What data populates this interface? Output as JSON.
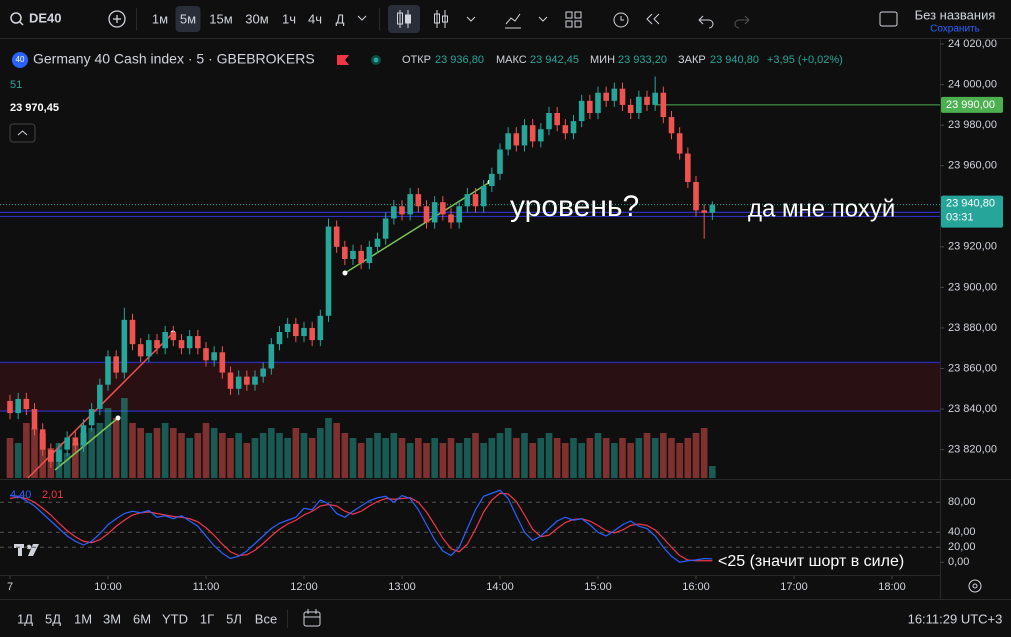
{
  "ui": {
    "symbol": "DE40",
    "timeframes": [
      "1м",
      "5м",
      "15м",
      "30м",
      "1ч",
      "4ч",
      "Д"
    ],
    "active_timeframe": 1,
    "layout_name": "Без названия",
    "save": "Сохранить",
    "badge": "40",
    "counter": "51",
    "crosshair_price": "23 970,45",
    "ranges": [
      "1Д",
      "5Д",
      "1М",
      "3М",
      "6М",
      "YTD",
      "1Г",
      "5Л",
      "Все"
    ],
    "clock": "16:11:29 UTC+3"
  },
  "chart_data": {
    "type": "candlestick",
    "title": "Germany 40 Cash index · 5 · GBEBROKERS",
    "legend": [
      {
        "key": "ОТКР",
        "value": "23 936,80"
      },
      {
        "key": "МАКС",
        "value": "23 942,45"
      },
      {
        "key": "МИН",
        "value": "23 933,20"
      },
      {
        "key": "ЗАКР",
        "value": "23 940,80"
      }
    ],
    "change": "+3,95 (+0,02%)",
    "colors": {
      "up": "#26a69a",
      "down": "#ef5350"
    },
    "x": [
      "09:00",
      "09:05",
      "09:10",
      "09:15",
      "09:20",
      "09:25",
      "09:30",
      "09:35",
      "09:40",
      "09:45",
      "09:50",
      "09:55",
      "10:00",
      "10:05",
      "10:10",
      "10:15",
      "10:20",
      "10:25",
      "10:30",
      "10:35",
      "10:40",
      "10:45",
      "10:50",
      "10:55",
      "11:00",
      "11:05",
      "11:10",
      "11:15",
      "11:20",
      "11:25",
      "11:30",
      "11:35",
      "11:40",
      "11:45",
      "11:50",
      "11:55",
      "12:00",
      "12:05",
      "12:10",
      "12:15",
      "12:20",
      "12:25",
      "12:30",
      "12:35",
      "12:40",
      "12:45",
      "12:50",
      "12:55",
      "13:00",
      "13:05",
      "13:10",
      "13:15",
      "13:20",
      "13:25",
      "13:30",
      "13:35",
      "13:40",
      "13:45",
      "13:50",
      "13:55",
      "14:00",
      "14:05",
      "14:10",
      "14:15",
      "14:20",
      "14:25",
      "14:30",
      "14:35",
      "14:40",
      "14:45",
      "14:50",
      "14:55",
      "15:00",
      "15:05",
      "15:10",
      "15:15",
      "15:20",
      "15:25",
      "15:30",
      "15:35",
      "15:40",
      "15:45",
      "15:50",
      "15:55",
      "16:00",
      "16:05",
      "16:10"
    ],
    "open": [
      23844,
      23838,
      23845,
      23840,
      23830,
      23820,
      23814,
      23820,
      23826,
      23822,
      23832,
      23840,
      23852,
      23866,
      23858,
      23884,
      23872,
      23866,
      23874,
      23870,
      23878,
      23874,
      23870,
      23876,
      23870,
      23864,
      23868,
      23858,
      23850,
      23856,
      23852,
      23856,
      23860,
      23872,
      23878,
      23882,
      23876,
      23880,
      23874,
      23886,
      23930,
      23920,
      23914,
      23918,
      23912,
      23920,
      23924,
      23934,
      23940,
      23936,
      23946,
      23940,
      23932,
      23942,
      23936,
      23932,
      23940,
      23946,
      23940,
      23950,
      23956,
      23968,
      23976,
      23970,
      23980,
      23972,
      23978,
      23986,
      23980,
      23976,
      23982,
      23992,
      23986,
      23996,
      23992,
      23998,
      23990,
      23986,
      23994,
      23990,
      23996,
      23984,
      23976,
      23966,
      23952,
      23938,
      23936.8
    ],
    "high": [
      23847,
      23848,
      23848,
      23843,
      23833,
      23823,
      23823,
      23829,
      23829,
      23835,
      23843,
      23855,
      23869,
      23869,
      23890,
      23887,
      23875,
      23877,
      23877,
      23881,
      23881,
      23877,
      23879,
      23879,
      23873,
      23871,
      23871,
      23861,
      23859,
      23859,
      23859,
      23863,
      23875,
      23881,
      23885,
      23885,
      23883,
      23883,
      23889,
      23934,
      23933,
      23923,
      23921,
      23921,
      23923,
      23927,
      23937,
      23943,
      23943,
      23949,
      23949,
      23943,
      23945,
      23945,
      23939,
      23943,
      23949,
      23949,
      23953,
      23959,
      23971,
      23979,
      23979,
      23983,
      23983,
      23981,
      23989,
      23989,
      23983,
      23985,
      23995,
      23995,
      23999,
      23999,
      24001,
      24001,
      23993,
      23997,
      23997,
      24004,
      23999,
      23987,
      23979,
      23969,
      23955,
      23941,
      23942.45
    ],
    "low": [
      23835,
      23835,
      23837,
      23827,
      23817,
      23811,
      23811,
      23817,
      23819,
      23819,
      23829,
      23837,
      23849,
      23855,
      23855,
      23869,
      23863,
      23863,
      23867,
      23867,
      23871,
      23867,
      23867,
      23867,
      23861,
      23861,
      23855,
      23847,
      23847,
      23849,
      23849,
      23853,
      23857,
      23869,
      23875,
      23873,
      23873,
      23871,
      23871,
      23883,
      23917,
      23911,
      23911,
      23909,
      23909,
      23917,
      23921,
      23931,
      23933,
      23933,
      23937,
      23929,
      23929,
      23933,
      23929,
      23929,
      23937,
      23937,
      23937,
      23947,
      23953,
      23965,
      23967,
      23967,
      23969,
      23969,
      23975,
      23977,
      23973,
      23973,
      23979,
      23983,
      23983,
      23989,
      23989,
      23987,
      23983,
      23983,
      23987,
      23987,
      23981,
      23973,
      23963,
      23949,
      23935,
      23924,
      23933.2
    ],
    "close": [
      23838,
      23845,
      23840,
      23830,
      23820,
      23814,
      23820,
      23826,
      23822,
      23832,
      23840,
      23852,
      23866,
      23858,
      23884,
      23872,
      23866,
      23874,
      23870,
      23878,
      23874,
      23870,
      23876,
      23870,
      23864,
      23868,
      23858,
      23850,
      23856,
      23852,
      23856,
      23860,
      23872,
      23878,
      23882,
      23876,
      23880,
      23874,
      23886,
      23930,
      23920,
      23914,
      23918,
      23912,
      23920,
      23924,
      23934,
      23940,
      23936,
      23946,
      23940,
      23932,
      23942,
      23936,
      23932,
      23940,
      23946,
      23940,
      23950,
      23956,
      23968,
      23976,
      23970,
      23980,
      23972,
      23978,
      23986,
      23980,
      23976,
      23982,
      23992,
      23986,
      23996,
      23992,
      23998,
      23990,
      23986,
      23994,
      23990,
      23996,
      23984,
      23976,
      23966,
      23952,
      23938,
      23936.8,
      23940.8
    ],
    "volume": [
      40,
      35,
      55,
      50,
      45,
      30,
      35,
      25,
      35,
      45,
      50,
      55,
      70,
      60,
      80,
      55,
      50,
      45,
      50,
      55,
      50,
      45,
      40,
      45,
      55,
      50,
      45,
      40,
      45,
      35,
      40,
      45,
      50,
      45,
      40,
      50,
      45,
      40,
      50,
      60,
      55,
      45,
      40,
      35,
      40,
      45,
      40,
      45,
      40,
      35,
      40,
      35,
      40,
      35,
      40,
      35,
      40,
      45,
      35,
      40,
      45,
      50,
      40,
      45,
      35,
      40,
      45,
      40,
      35,
      40,
      35,
      40,
      45,
      40,
      35,
      40,
      35,
      40,
      45,
      40,
      45,
      40,
      35,
      40,
      45,
      50,
      12
    ],
    "ylim": [
      23806,
      24022
    ],
    "yticks": [
      {
        "value": 23820,
        "label": "23 820,00"
      },
      {
        "value": 23840,
        "label": "23 840,00"
      },
      {
        "value": 23860,
        "label": "23 860,00"
      },
      {
        "value": 23880,
        "label": "23 880,00"
      },
      {
        "value": 23900,
        "label": "23 900,00"
      },
      {
        "value": 23920,
        "label": "23 920,00"
      },
      {
        "value": 23940,
        "label": "23 940,00"
      },
      {
        "value": 23960,
        "label": "23 960,00"
      },
      {
        "value": 23980,
        "label": "23 980,00"
      },
      {
        "value": 24000,
        "label": "24 000,00"
      },
      {
        "value": 24020,
        "label": "24 020,00"
      }
    ],
    "xticks": [
      {
        "value": "09:00",
        "label": "7"
      },
      "10:00",
      "11:00",
      "12:00",
      "13:00",
      "14:00",
      "15:00",
      "16:00",
      "17:00",
      "18:00"
    ],
    "grid": false,
    "zone": [
      23839,
      23863
    ],
    "levels": [
      23937,
      23935
    ],
    "alert_level": {
      "value": 23990,
      "label": "23 990,00"
    },
    "last_price": {
      "value": 23940.8,
      "label": "23 940,80"
    },
    "countdown": "03:31",
    "annotations": [
      "уровень?",
      "да мне похуй"
    ],
    "indicator": {
      "ylim": [
        -17,
        107
      ],
      "yticks": [
        {
          "value": 0,
          "label": "0,00"
        },
        {
          "value": 20,
          "label": "20,00"
        },
        {
          "value": 40,
          "label": "40,00"
        },
        {
          "value": 80,
          "label": "80,00"
        }
      ],
      "series": [
        {
          "color": "#2962ff",
          "last_label": "4,40",
          "values": [
            89,
            88,
            82,
            75,
            65,
            55,
            45,
            35,
            28,
            23,
            28,
            38,
            50,
            58,
            65,
            68,
            66,
            69,
            60,
            62,
            58,
            62,
            55,
            48,
            35,
            22,
            12,
            5,
            8,
            15,
            25,
            35,
            45,
            52,
            56,
            60,
            72,
            70,
            83,
            78,
            65,
            60,
            68,
            75,
            82,
            86,
            88,
            80,
            89,
            85,
            70,
            50,
            30,
            15,
            9,
            20,
            45,
            70,
            88,
            92,
            96,
            85,
            62,
            40,
            29,
            35,
            45,
            55,
            60,
            56,
            58,
            50,
            40,
            35,
            42,
            50,
            55,
            48,
            45,
            35,
            20,
            8,
            0,
            2,
            3,
            5,
            4.4
          ]
        },
        {
          "color": "#f23645",
          "last_label": "2,01",
          "values": [
            85,
            87,
            85,
            80,
            72,
            63,
            52,
            42,
            34,
            28,
            26,
            30,
            38,
            48,
            56,
            63,
            66,
            67,
            65,
            63,
            61,
            60,
            58,
            54,
            46,
            36,
            24,
            14,
            9,
            10,
            16,
            25,
            35,
            44,
            51,
            56,
            63,
            68,
            75,
            77,
            75,
            68,
            64,
            68,
            75,
            81,
            85,
            84,
            85,
            86,
            80,
            67,
            50,
            32,
            18,
            14,
            24,
            44,
            67,
            83,
            92,
            91,
            81,
            63,
            44,
            34,
            36,
            45,
            53,
            57,
            58,
            55,
            49,
            42,
            39,
            43,
            49,
            51,
            49,
            43,
            32,
            20,
            9,
            3,
            2,
            2,
            2.01
          ]
        }
      ],
      "annotation": "<25 (значит шорт в силе)"
    }
  }
}
